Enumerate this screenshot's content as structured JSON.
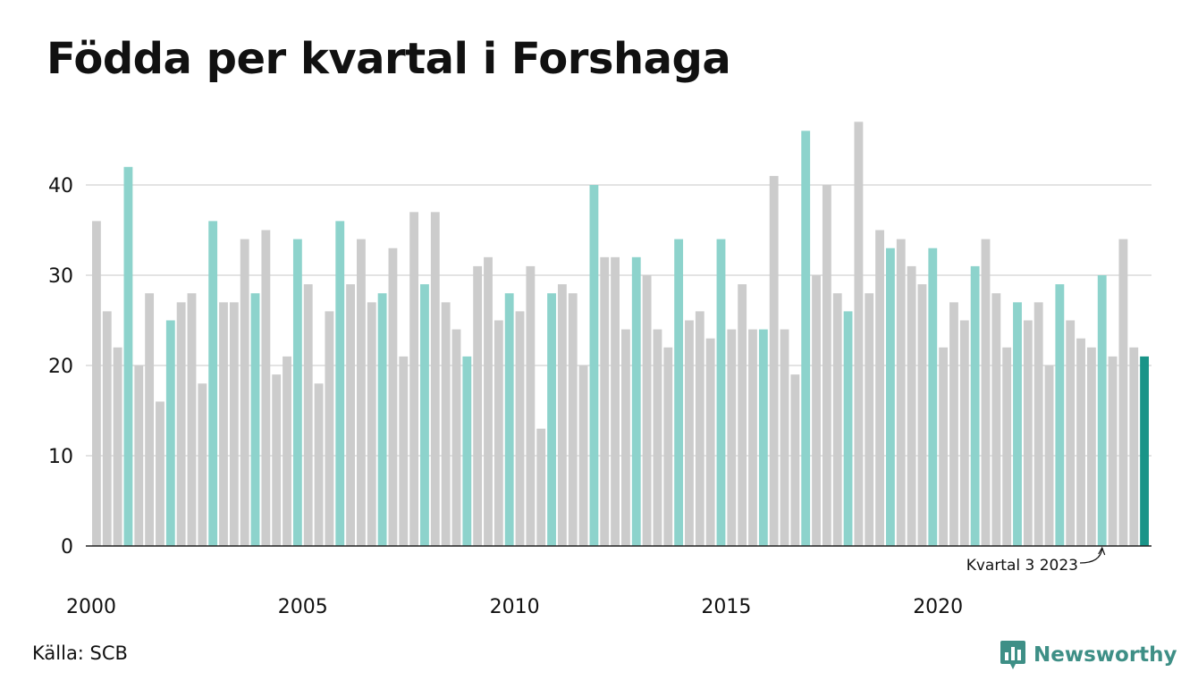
{
  "title": "Födda per kvartal i Forshaga",
  "source": "Källa: SCB",
  "brand": {
    "name": "Newsworthy",
    "icon": "newsworthy-logo-icon",
    "color": "#3e8f86"
  },
  "colors": {
    "bar_default": "#cccccc",
    "bar_highlight_q4": "#8dd3cc",
    "bar_latest": "#1a9488",
    "grid": "#e3e3e3",
    "axis": "#222222"
  },
  "chart_data": {
    "type": "bar",
    "title": "Födda per kvartal i Forshaga",
    "xlabel": "",
    "ylabel": "",
    "ylim": [
      0,
      47
    ],
    "yticks": [
      0,
      10,
      20,
      30,
      40
    ],
    "xtick_labels": [
      "2000",
      "2005",
      "2010",
      "2015",
      "2020"
    ],
    "grid": "horizontal",
    "legend": "none",
    "start_year": 2000,
    "highlight_quarter": 4,
    "values": [
      36,
      26,
      22,
      42,
      20,
      28,
      16,
      25,
      27,
      28,
      18,
      36,
      27,
      27,
      34,
      28,
      35,
      19,
      21,
      34,
      29,
      18,
      26,
      36,
      29,
      34,
      27,
      28,
      33,
      21,
      37,
      29,
      37,
      27,
      24,
      21,
      31,
      32,
      25,
      28,
      26,
      31,
      13,
      28,
      29,
      28,
      20,
      40,
      32,
      32,
      24,
      32,
      30,
      24,
      22,
      34,
      25,
      26,
      23,
      34,
      24,
      29,
      24,
      24,
      41,
      24,
      19,
      46,
      30,
      40,
      28,
      26,
      47,
      28,
      35,
      33,
      34,
      31,
      29,
      33,
      22,
      27,
      25,
      31,
      34,
      28,
      22,
      27,
      25,
      27,
      20,
      29,
      25,
      23,
      22,
      30,
      21,
      34,
      22,
      21
    ],
    "annotation": {
      "text": "Kvartal 3 2023",
      "target_index": 95
    }
  }
}
